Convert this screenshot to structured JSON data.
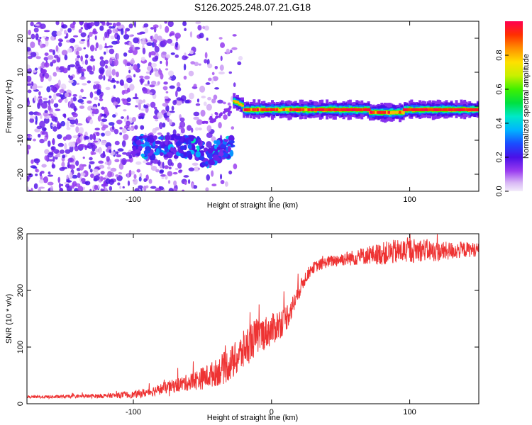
{
  "title": "S126.2025.248.07.21.G18",
  "chart_data": [
    {
      "type": "heatmap",
      "xlabel": "Height of straight line (km)",
      "ylabel": "Frequency (Hz)",
      "xlim": [
        -177,
        150
      ],
      "ylim": [
        -25,
        25
      ],
      "x_ticks": [
        -100,
        0,
        100
      ],
      "y_ticks": [
        -20,
        -10,
        0,
        10,
        20
      ],
      "colorbar": {
        "label": "Normalized spectral amplitude",
        "range": [
          0,
          1
        ],
        "ticks": [
          0.0,
          0.2,
          0.4,
          0.6,
          0.8
        ],
        "colormap": "rainbow"
      },
      "features": [
        {
          "name": "noise-region",
          "x_range": [
            -177,
            -80
          ],
          "y_range": [
            -25,
            25
          ],
          "amplitude": 0.15
        },
        {
          "name": "low-band",
          "x_range": [
            -100,
            -28
          ],
          "y_center": -12,
          "amplitude": 0.3
        },
        {
          "name": "main-trace",
          "x_range": [
            -28,
            150
          ],
          "y_center": -1,
          "amplitude": 0.95
        }
      ],
      "grid": false
    },
    {
      "type": "line",
      "xlabel": "Height of straight line (km)",
      "ylabel": "SNR (10 * v/v)",
      "xlim": [
        -177,
        150
      ],
      "ylim": [
        0,
        300
      ],
      "x_ticks": [
        -100,
        0,
        100
      ],
      "y_ticks": [
        0,
        100,
        200,
        300
      ],
      "line_color": "#ee3333",
      "series": [
        {
          "x": [
            -177,
            -160,
            -140,
            -120,
            -100,
            -90,
            -80,
            -70,
            -60,
            -50,
            -45,
            -40,
            -35,
            -30,
            -25,
            -20,
            -15,
            -10,
            -5,
            0,
            5,
            10,
            15,
            20,
            25,
            30,
            40,
            50,
            60,
            70,
            80,
            90,
            100,
            110,
            120,
            130,
            140,
            150
          ],
          "values": [
            12,
            12,
            13,
            14,
            16,
            20,
            26,
            32,
            38,
            45,
            50,
            55,
            62,
            70,
            80,
            95,
            110,
            120,
            125,
            130,
            140,
            150,
            170,
            200,
            225,
            240,
            250,
            255,
            258,
            262,
            265,
            268,
            270,
            272,
            268,
            270,
            272,
            272
          ],
          "noise": [
            2,
            3,
            3,
            4,
            6,
            8,
            10,
            12,
            15,
            20,
            22,
            24,
            28,
            30,
            32,
            35,
            35,
            32,
            30,
            28,
            28,
            25,
            20,
            15,
            12,
            10,
            10,
            12,
            14,
            16,
            20,
            22,
            22,
            20,
            18,
            16,
            14,
            12
          ]
        }
      ],
      "grid": false
    }
  ]
}
